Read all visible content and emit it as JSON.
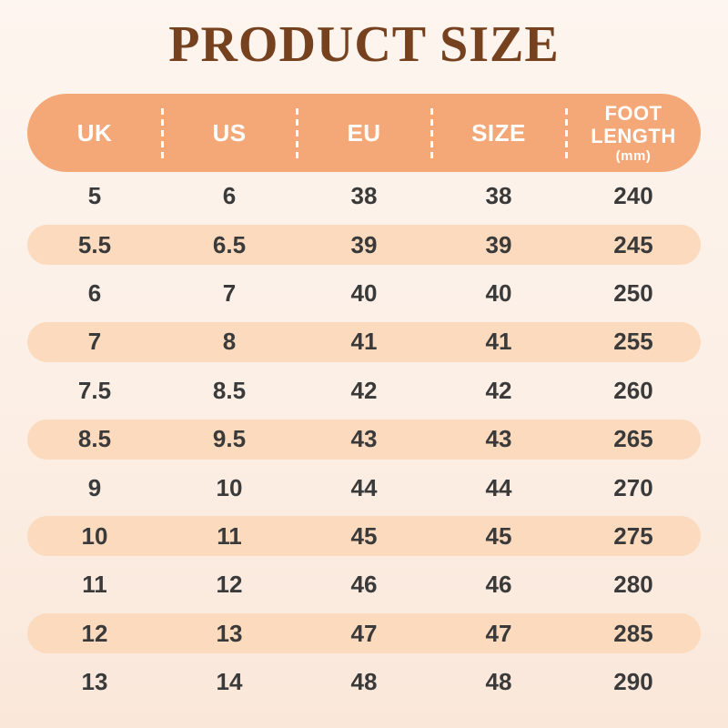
{
  "title": "PRODUCT SIZE",
  "colors": {
    "bg_top": "#FDF5EF",
    "bg_mid": "#FCEFE5",
    "bg_bottom": "#FAE7DA",
    "header_bg": "#F5A877",
    "header_text": "#FFFFFF",
    "stripe_bg": "#FBDABE",
    "row_text": "#3A3A3A",
    "title_color": "#76411F"
  },
  "table": {
    "columns": [
      {
        "key": "uk",
        "label": "UK"
      },
      {
        "key": "us",
        "label": "US"
      },
      {
        "key": "eu",
        "label": "EU"
      },
      {
        "key": "size",
        "label": "SIZE"
      },
      {
        "key": "foot_length",
        "label": "FOOT LENGTH",
        "sub": "(mm)"
      }
    ],
    "column_keys": [
      "uk",
      "us",
      "eu",
      "size",
      "foot_length"
    ]
  },
  "chart_data": {
    "type": "table",
    "title": "PRODUCT SIZE",
    "columns": [
      "UK",
      "US",
      "EU",
      "SIZE",
      "FOOT LENGTH (mm)"
    ],
    "rows": [
      [
        "5",
        "6",
        "38",
        "38",
        "240"
      ],
      [
        "5.5",
        "6.5",
        "39",
        "39",
        "245"
      ],
      [
        "6",
        "7",
        "40",
        "40",
        "250"
      ],
      [
        "7",
        "8",
        "41",
        "41",
        "255"
      ],
      [
        "7.5",
        "8.5",
        "42",
        "42",
        "260"
      ],
      [
        "8.5",
        "9.5",
        "43",
        "43",
        "265"
      ],
      [
        "9",
        "10",
        "44",
        "44",
        "270"
      ],
      [
        "10",
        "11",
        "45",
        "45",
        "275"
      ],
      [
        "11",
        "12",
        "46",
        "46",
        "280"
      ],
      [
        "12",
        "13",
        "47",
        "47",
        "285"
      ],
      [
        "13",
        "14",
        "48",
        "48",
        "290"
      ]
    ],
    "layout": {
      "striped_row_indices": [
        1,
        3,
        5,
        7,
        9
      ],
      "header_pill": true,
      "grid": false
    }
  }
}
